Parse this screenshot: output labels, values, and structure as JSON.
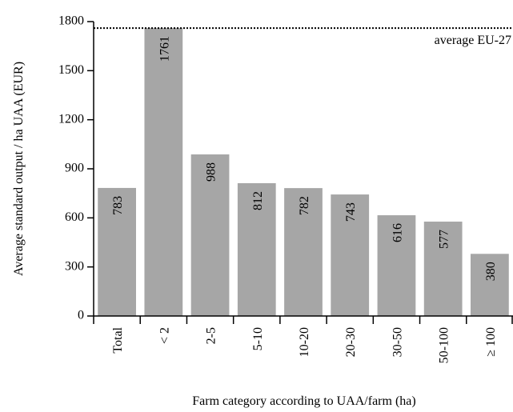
{
  "chart_data": {
    "type": "bar",
    "x_label": "Farm category according to UAA/farm (ha)",
    "y_label": "Average standard output / ha UAA (EUR)",
    "categories": [
      "Total",
      "< 2",
      "2-5",
      "5-10",
      "10-20",
      "20-30",
      "30-50",
      "50-100",
      "≥ 100"
    ],
    "values": [
      783,
      1761,
      988,
      812,
      782,
      743,
      616,
      577,
      380
    ],
    "color": "#a6a6a6",
    "ylim": [
      0,
      1800
    ],
    "yticks": [
      0,
      300,
      600,
      900,
      1200,
      1500,
      1800
    ],
    "reference": {
      "label": "average EU-27",
      "value": 1760
    }
  }
}
